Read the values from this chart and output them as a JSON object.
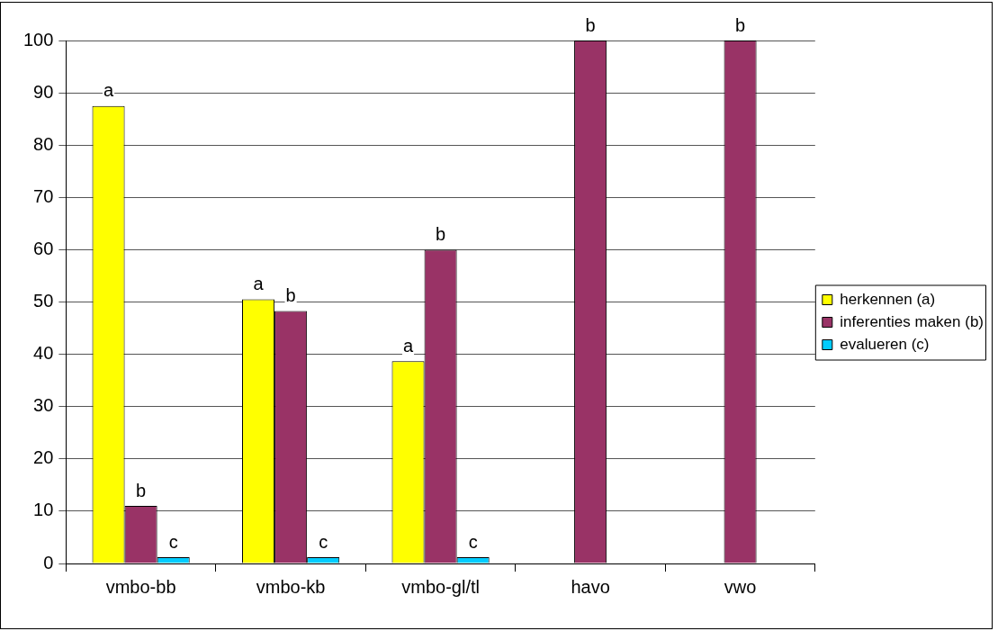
{
  "chart_data": {
    "type": "bar",
    "categories": [
      "vmbo-bb",
      "vmbo-kb",
      "vmbo-gl/tl",
      "havo",
      "vwo"
    ],
    "series": [
      {
        "name": "herkennen (a)",
        "color": "#ffff00",
        "values": [
          87.5,
          50.5,
          38.7,
          null,
          null
        ],
        "value_labels": [
          "a",
          "a",
          "a",
          null,
          null
        ]
      },
      {
        "name": "inferenties maken (b)",
        "color": "#993366",
        "values": [
          11,
          48.3,
          60,
          100,
          100
        ],
        "value_labels": [
          "b",
          "b",
          "b",
          "b",
          "b"
        ]
      },
      {
        "name": "evalueren (c)",
        "color": "#00ccff",
        "values": [
          1.2,
          1.2,
          1.2,
          null,
          null
        ],
        "value_labels": [
          "c",
          "c",
          "c",
          null,
          null
        ]
      }
    ],
    "ylim": [
      0,
      100
    ],
    "yticks": [
      0,
      10,
      20,
      30,
      40,
      50,
      60,
      70,
      80,
      90,
      100
    ],
    "grid": "y",
    "legend": "right"
  }
}
